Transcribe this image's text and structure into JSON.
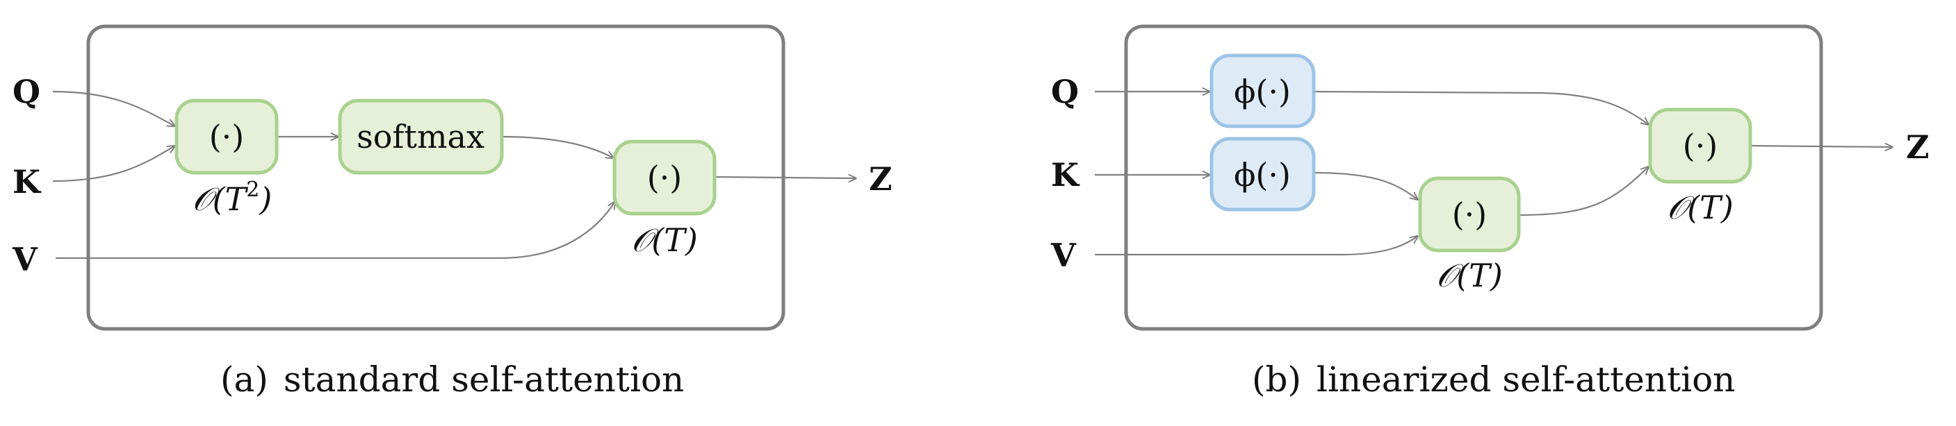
{
  "panel_a": {
    "caption_prefix": "(a)",
    "caption": "standard self-attention",
    "inputs": {
      "q": "Q",
      "k": "K",
      "v": "V"
    },
    "output": "Z",
    "nodes": {
      "dot1": "(·)",
      "softmax": "softmax",
      "dot2": "(·)"
    },
    "complexity": {
      "dot1": {
        "base": "𝒪(T",
        "sup": "2",
        "close": ")"
      },
      "dot2": "𝒪(T)"
    }
  },
  "panel_b": {
    "caption_prefix": "(b)",
    "caption": "linearized self-attention",
    "inputs": {
      "q": "Q",
      "k": "K",
      "v": "V"
    },
    "output": "Z",
    "nodes": {
      "phi_q": "ϕ(·)",
      "phi_k": "ϕ(·)",
      "dot_kv": "(·)",
      "dot_out": "(·)"
    },
    "complexity": {
      "dot_kv": "𝒪(T)",
      "dot_out": "𝒪(T)"
    }
  },
  "colors": {
    "frame": "#7f7f7f",
    "green_fill": "#e6f0d8",
    "green_stroke": "#a9d18e",
    "blue_fill": "#deebf7",
    "blue_stroke": "#9dc3e6",
    "edge": "#808080"
  }
}
